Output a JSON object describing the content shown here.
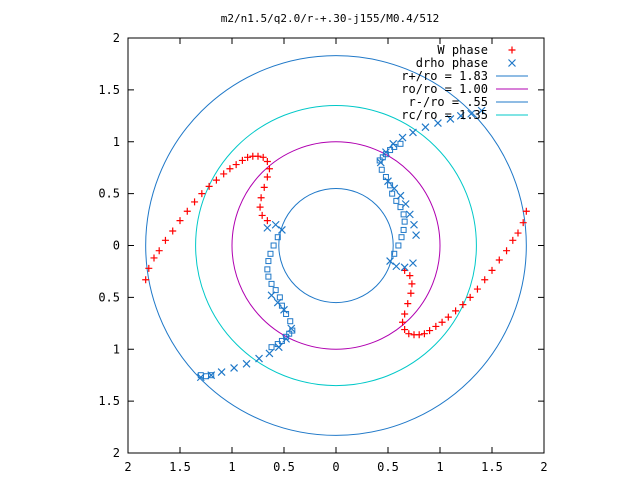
{
  "chart_data": {
    "type": "scatter",
    "title": "m2/n1.5/q2.0/r-+.30-j155/M0.4/512",
    "xlabel": "",
    "ylabel": "",
    "xlim": [
      -2,
      2
    ],
    "ylim": [
      -2,
      2
    ],
    "x_tick_values": [
      -2,
      -1.5,
      -1,
      -0.5,
      0,
      0.5,
      1,
      1.5,
      2
    ],
    "x_tick_labels": [
      "2",
      "1.5",
      "1",
      "0.5",
      "0",
      "0.5",
      "1",
      "1.5",
      "2"
    ],
    "y_tick_values": [
      2,
      1.5,
      1,
      0.5,
      0,
      -0.5,
      -1,
      -1.5,
      -2
    ],
    "y_tick_labels": [
      "2",
      "1.5",
      "1",
      "0.5",
      "0",
      "0.5",
      "1",
      "1.5",
      "2"
    ],
    "grid": false,
    "legend_position": "top-right",
    "circles": [
      {
        "label": "r+/ro = 1.83",
        "radius": 1.83,
        "color": "#1f78c8"
      },
      {
        "label": "ro/ro = 1.00",
        "radius": 1.0,
        "color": "#b000b0"
      },
      {
        "label": "r-/ro = .55",
        "radius": 0.55,
        "color": "#1f78c8"
      },
      {
        "label": "rc/ro = 1.35",
        "radius": 1.35,
        "color": "#00c8c8"
      }
    ],
    "series": [
      {
        "name": "W phase",
        "marker": "+",
        "color": "#ff0000",
        "points": [
          [
            -1.83,
            -0.33
          ],
          [
            -1.8,
            -0.22
          ],
          [
            -1.75,
            -0.12
          ],
          [
            -1.7,
            -0.05
          ],
          [
            -1.64,
            0.05
          ],
          [
            -1.57,
            0.14
          ],
          [
            -1.5,
            0.24
          ],
          [
            -1.43,
            0.33
          ],
          [
            -1.36,
            0.42
          ],
          [
            -1.29,
            0.5
          ],
          [
            -1.22,
            0.57
          ],
          [
            -1.15,
            0.63
          ],
          [
            -1.08,
            0.69
          ],
          [
            -1.02,
            0.74
          ],
          [
            -0.96,
            0.78
          ],
          [
            -0.9,
            0.82
          ],
          [
            -0.85,
            0.85
          ],
          [
            -0.8,
            0.86
          ],
          [
            -0.75,
            0.86
          ],
          [
            -0.7,
            0.85
          ],
          [
            -0.66,
            0.81
          ],
          [
            -0.64,
            0.74
          ],
          [
            -0.66,
            0.66
          ],
          [
            -0.69,
            0.56
          ],
          [
            -0.72,
            0.46
          ],
          [
            -0.73,
            0.37
          ],
          [
            -0.71,
            0.29
          ],
          [
            -0.66,
            0.24
          ],
          [
            1.83,
            0.33
          ],
          [
            1.8,
            0.22
          ],
          [
            1.75,
            0.12
          ],
          [
            1.7,
            0.05
          ],
          [
            1.64,
            -0.05
          ],
          [
            1.57,
            -0.14
          ],
          [
            1.5,
            -0.24
          ],
          [
            1.43,
            -0.33
          ],
          [
            1.36,
            -0.42
          ],
          [
            1.29,
            -0.5
          ],
          [
            1.22,
            -0.57
          ],
          [
            1.15,
            -0.63
          ],
          [
            1.08,
            -0.69
          ],
          [
            1.02,
            -0.74
          ],
          [
            0.96,
            -0.78
          ],
          [
            0.9,
            -0.82
          ],
          [
            0.85,
            -0.85
          ],
          [
            0.8,
            -0.86
          ],
          [
            0.75,
            -0.86
          ],
          [
            0.7,
            -0.85
          ],
          [
            0.66,
            -0.81
          ],
          [
            0.64,
            -0.74
          ],
          [
            0.66,
            -0.66
          ],
          [
            0.69,
            -0.56
          ],
          [
            0.72,
            -0.46
          ],
          [
            0.73,
            -0.37
          ],
          [
            0.71,
            -0.29
          ],
          [
            0.66,
            -0.24
          ]
        ]
      },
      {
        "name": "drho phase",
        "marker": "x",
        "color": "#1f78c8",
        "points": [
          [
            0.43,
            0.8
          ],
          [
            0.48,
            0.9
          ],
          [
            0.55,
            0.98
          ],
          [
            0.64,
            1.04
          ],
          [
            0.74,
            1.09
          ],
          [
            0.86,
            1.14
          ],
          [
            0.98,
            1.18
          ],
          [
            1.1,
            1.22
          ],
          [
            1.2,
            1.25
          ],
          [
            1.3,
            1.27
          ],
          [
            1.4,
            1.3
          ],
          [
            0.5,
            0.62
          ],
          [
            0.56,
            0.55
          ],
          [
            0.62,
            0.48
          ],
          [
            0.67,
            0.4
          ],
          [
            0.71,
            0.3
          ],
          [
            0.75,
            0.2
          ],
          [
            0.77,
            0.1
          ],
          [
            0.74,
            -0.17
          ],
          [
            0.66,
            -0.21
          ],
          [
            0.58,
            -0.2
          ],
          [
            0.52,
            -0.15
          ],
          [
            -0.43,
            -0.8
          ],
          [
            -0.48,
            -0.9
          ],
          [
            -0.55,
            -0.98
          ],
          [
            -0.64,
            -1.04
          ],
          [
            -0.74,
            -1.09
          ],
          [
            -0.86,
            -1.14
          ],
          [
            -0.98,
            -1.18
          ],
          [
            -1.1,
            -1.22
          ],
          [
            -1.2,
            -1.25
          ],
          [
            -1.3,
            -1.27
          ],
          [
            -0.5,
            -0.62
          ],
          [
            -0.56,
            -0.55
          ],
          [
            -0.62,
            -0.48
          ],
          [
            -0.52,
            0.15
          ],
          [
            -0.58,
            0.2
          ],
          [
            -0.66,
            0.17
          ]
        ]
      }
    ],
    "inner_markers": {
      "color": "#1f78c8",
      "marker": "square",
      "points": [
        [
          -0.56,
          0.08
        ],
        [
          -0.6,
          0.0
        ],
        [
          -0.63,
          -0.08
        ],
        [
          -0.65,
          -0.15
        ],
        [
          -0.66,
          -0.23
        ],
        [
          -0.65,
          -0.3
        ],
        [
          -0.62,
          -0.37
        ],
        [
          -0.58,
          -0.43
        ],
        [
          -0.54,
          -0.5
        ],
        [
          -0.52,
          -0.58
        ],
        [
          -0.48,
          -0.66
        ],
        [
          -0.44,
          -0.73
        ],
        [
          0.56,
          -0.08
        ],
        [
          0.6,
          0.0
        ],
        [
          0.63,
          0.08
        ],
        [
          0.65,
          0.15
        ],
        [
          0.66,
          0.23
        ],
        [
          0.65,
          0.3
        ],
        [
          0.62,
          0.37
        ],
        [
          0.58,
          0.43
        ],
        [
          0.54,
          0.5
        ],
        [
          0.52,
          0.58
        ],
        [
          0.48,
          0.66
        ],
        [
          0.44,
          0.73
        ],
        [
          0.42,
          0.82
        ],
        [
          0.45,
          0.85
        ],
        [
          0.48,
          0.88
        ],
        [
          0.52,
          0.92
        ],
        [
          0.56,
          0.95
        ],
        [
          0.62,
          0.98
        ],
        [
          -0.42,
          -0.82
        ],
        [
          -0.45,
          -0.85
        ],
        [
          -0.48,
          -0.88
        ],
        [
          -0.52,
          -0.92
        ],
        [
          -0.56,
          -0.95
        ],
        [
          -0.62,
          -0.98
        ],
        [
          -1.3,
          -1.25
        ],
        [
          -1.25,
          -1.26
        ],
        [
          -1.2,
          -1.25
        ]
      ]
    }
  }
}
